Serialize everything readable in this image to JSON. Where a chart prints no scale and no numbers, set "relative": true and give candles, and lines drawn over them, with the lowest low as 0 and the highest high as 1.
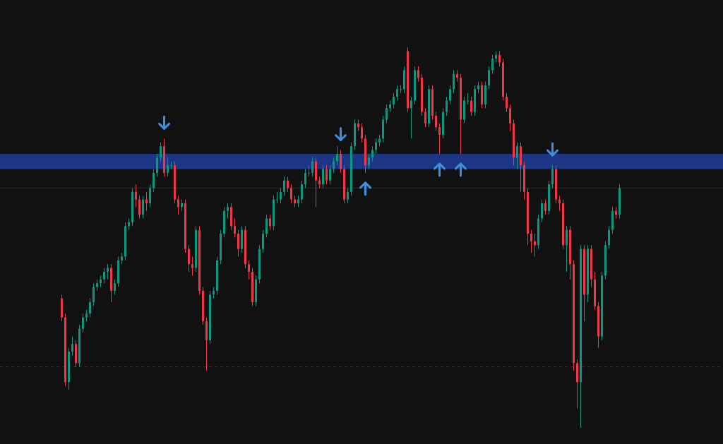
{
  "chart_data": {
    "type": "candlestick",
    "relative": true,
    "categories": [
      null,
      null,
      null,
      null,
      null,
      null,
      null,
      null,
      null,
      null,
      null,
      null,
      null,
      null,
      null,
      null,
      null,
      null,
      null,
      null,
      null,
      null,
      null,
      null,
      null,
      null,
      null,
      null,
      null,
      null,
      null,
      null,
      null,
      null,
      null,
      null,
      null,
      null,
      null,
      null,
      null,
      null,
      null,
      null,
      null,
      null,
      null,
      null,
      null,
      null,
      null,
      null,
      null,
      null,
      null,
      null,
      null,
      null,
      null,
      null,
      null,
      null,
      null,
      null,
      null,
      null,
      null,
      null,
      null,
      null,
      null,
      null,
      null,
      null,
      null,
      null,
      null,
      null,
      null,
      null,
      null,
      null,
      null,
      null,
      null,
      null,
      null,
      null,
      null,
      null,
      null,
      null,
      null,
      null,
      null,
      null,
      null,
      null,
      null,
      null,
      null,
      null,
      null,
      null,
      null,
      null,
      null,
      null,
      null,
      null,
      null,
      null,
      null,
      null,
      null,
      null,
      null,
      null,
      null,
      null,
      null,
      null,
      null,
      null,
      null,
      null,
      null,
      null,
      null,
      null,
      null,
      null,
      null,
      null,
      null,
      null,
      null,
      null,
      null,
      null,
      null,
      null,
      null,
      null,
      null,
      null,
      null,
      null,
      null,
      null,
      null,
      null,
      null,
      null,
      null,
      null,
      null,
      null,
      null
    ],
    "ohlc": [
      [
        0.34,
        0.35,
        0.28,
        0.29
      ],
      [
        0.29,
        0.3,
        0.11,
        0.12
      ],
      [
        0.12,
        0.21,
        0.1,
        0.2
      ],
      [
        0.2,
        0.24,
        0.19,
        0.22
      ],
      [
        0.22,
        0.23,
        0.16,
        0.17
      ],
      [
        0.17,
        0.27,
        0.16,
        0.26
      ],
      [
        0.26,
        0.3,
        0.25,
        0.29
      ],
      [
        0.29,
        0.31,
        0.28,
        0.3
      ],
      [
        0.3,
        0.34,
        0.29,
        0.33
      ],
      [
        0.33,
        0.38,
        0.32,
        0.37
      ],
      [
        0.37,
        0.39,
        0.36,
        0.38
      ],
      [
        0.38,
        0.4,
        0.37,
        0.39
      ],
      [
        0.39,
        0.42,
        0.38,
        0.41
      ],
      [
        0.41,
        0.43,
        0.39,
        0.42
      ],
      [
        0.42,
        0.43,
        0.33,
        0.36
      ],
      [
        0.36,
        0.39,
        0.35,
        0.38
      ],
      [
        0.38,
        0.45,
        0.37,
        0.44
      ],
      [
        0.44,
        0.46,
        0.43,
        0.45
      ],
      [
        0.45,
        0.54,
        0.44,
        0.53
      ],
      [
        0.53,
        0.55,
        0.52,
        0.54
      ],
      [
        0.54,
        0.63,
        0.53,
        0.62
      ],
      [
        0.62,
        0.64,
        0.58,
        0.6
      ],
      [
        0.6,
        0.61,
        0.55,
        0.56
      ],
      [
        0.56,
        0.61,
        0.55,
        0.6
      ],
      [
        0.6,
        0.62,
        0.57,
        0.59
      ],
      [
        0.59,
        0.64,
        0.58,
        0.63
      ],
      [
        0.63,
        0.68,
        0.62,
        0.67
      ],
      [
        0.67,
        0.72,
        0.66,
        0.71
      ],
      [
        0.71,
        0.75,
        0.7,
        0.74
      ],
      [
        0.74,
        0.76,
        0.66,
        0.67
      ],
      [
        0.67,
        0.71,
        0.66,
        0.69
      ],
      [
        0.69,
        0.7,
        0.68,
        0.69
      ],
      [
        0.69,
        0.7,
        0.59,
        0.6
      ],
      [
        0.6,
        0.61,
        0.56,
        0.58
      ],
      [
        0.58,
        0.6,
        0.57,
        0.59
      ],
      [
        0.59,
        0.6,
        0.46,
        0.47
      ],
      [
        0.47,
        0.48,
        0.41,
        0.43
      ],
      [
        0.43,
        0.45,
        0.4,
        0.42
      ],
      [
        0.42,
        0.53,
        0.41,
        0.52
      ],
      [
        0.52,
        0.53,
        0.35,
        0.36
      ],
      [
        0.36,
        0.37,
        0.27,
        0.28
      ],
      [
        0.28,
        0.29,
        0.15,
        0.23
      ],
      [
        0.23,
        0.36,
        0.22,
        0.35
      ],
      [
        0.35,
        0.37,
        0.34,
        0.36
      ],
      [
        0.36,
        0.45,
        0.35,
        0.44
      ],
      [
        0.44,
        0.52,
        0.43,
        0.51
      ],
      [
        0.51,
        0.58,
        0.5,
        0.57
      ],
      [
        0.57,
        0.59,
        0.55,
        0.58
      ],
      [
        0.58,
        0.59,
        0.52,
        0.53
      ],
      [
        0.53,
        0.55,
        0.5,
        0.51
      ],
      [
        0.51,
        0.52,
        0.45,
        0.47
      ],
      [
        0.47,
        0.53,
        0.46,
        0.52
      ],
      [
        0.52,
        0.53,
        0.42,
        0.43
      ],
      [
        0.43,
        0.44,
        0.39,
        0.41
      ],
      [
        0.41,
        0.42,
        0.32,
        0.33
      ],
      [
        0.33,
        0.4,
        0.32,
        0.39
      ],
      [
        0.39,
        0.48,
        0.38,
        0.47
      ],
      [
        0.47,
        0.52,
        0.46,
        0.51
      ],
      [
        0.51,
        0.56,
        0.5,
        0.55
      ],
      [
        0.55,
        0.56,
        0.52,
        0.53
      ],
      [
        0.53,
        0.61,
        0.52,
        0.6
      ],
      [
        0.6,
        0.62,
        0.59,
        0.6
      ],
      [
        0.6,
        0.63,
        0.59,
        0.62
      ],
      [
        0.62,
        0.66,
        0.61,
        0.65
      ],
      [
        0.65,
        0.66,
        0.62,
        0.63
      ],
      [
        0.63,
        0.64,
        0.59,
        0.6
      ],
      [
        0.6,
        0.61,
        0.58,
        0.59
      ],
      [
        0.59,
        0.61,
        0.58,
        0.6
      ],
      [
        0.6,
        0.65,
        0.59,
        0.64
      ],
      [
        0.64,
        0.68,
        0.63,
        0.67
      ],
      [
        0.67,
        0.69,
        0.66,
        0.67
      ],
      [
        0.67,
        0.71,
        0.66,
        0.7
      ],
      [
        0.7,
        0.71,
        0.58,
        0.65
      ],
      [
        0.65,
        0.66,
        0.63,
        0.64
      ],
      [
        0.64,
        0.69,
        0.63,
        0.68
      ],
      [
        0.68,
        0.69,
        0.64,
        0.65
      ],
      [
        0.65,
        0.69,
        0.64,
        0.68
      ],
      [
        0.68,
        0.71,
        0.67,
        0.7
      ],
      [
        0.7,
        0.74,
        0.69,
        0.72
      ],
      [
        0.72,
        0.73,
        0.67,
        0.68
      ],
      [
        0.68,
        0.69,
        0.59,
        0.6
      ],
      [
        0.6,
        0.63,
        0.59,
        0.62
      ],
      [
        0.62,
        0.75,
        0.61,
        0.74
      ],
      [
        0.74,
        0.81,
        0.73,
        0.8
      ],
      [
        0.8,
        0.81,
        0.78,
        0.79
      ],
      [
        0.79,
        0.8,
        0.75,
        0.76
      ],
      [
        0.76,
        0.77,
        0.67,
        0.69
      ],
      [
        0.69,
        0.72,
        0.68,
        0.71
      ],
      [
        0.71,
        0.74,
        0.7,
        0.73
      ],
      [
        0.73,
        0.76,
        0.72,
        0.75
      ],
      [
        0.75,
        0.77,
        0.74,
        0.76
      ],
      [
        0.76,
        0.82,
        0.75,
        0.81
      ],
      [
        0.81,
        0.85,
        0.8,
        0.84
      ],
      [
        0.84,
        0.86,
        0.83,
        0.85
      ],
      [
        0.85,
        0.88,
        0.84,
        0.87
      ],
      [
        0.87,
        0.9,
        0.86,
        0.89
      ],
      [
        0.89,
        0.9,
        0.88,
        0.89
      ],
      [
        0.89,
        0.95,
        0.88,
        0.94
      ],
      [
        0.99,
        1.0,
        0.83,
        0.84
      ],
      [
        0.84,
        0.87,
        0.76,
        0.86
      ],
      [
        0.86,
        0.95,
        0.85,
        0.94
      ],
      [
        0.94,
        0.95,
        0.91,
        0.92
      ],
      [
        0.92,
        0.93,
        0.82,
        0.83
      ],
      [
        0.83,
        0.84,
        0.79,
        0.8
      ],
      [
        0.8,
        0.9,
        0.79,
        0.89
      ],
      [
        0.89,
        0.9,
        0.81,
        0.82
      ],
      [
        0.82,
        0.83,
        0.78,
        0.79
      ],
      [
        0.79,
        0.8,
        0.72,
        0.77
      ],
      [
        0.77,
        0.84,
        0.76,
        0.83
      ],
      [
        0.83,
        0.87,
        0.82,
        0.86
      ],
      [
        0.86,
        0.9,
        0.85,
        0.89
      ],
      [
        0.89,
        0.94,
        0.88,
        0.93
      ],
      [
        0.93,
        0.94,
        0.91,
        0.92
      ],
      [
        0.92,
        0.93,
        0.72,
        0.81
      ],
      [
        0.81,
        0.87,
        0.8,
        0.86
      ],
      [
        0.86,
        0.88,
        0.85,
        0.86
      ],
      [
        0.86,
        0.87,
        0.82,
        0.83
      ],
      [
        0.83,
        0.9,
        0.82,
        0.89
      ],
      [
        0.89,
        0.91,
        0.88,
        0.9
      ],
      [
        0.9,
        0.91,
        0.84,
        0.85
      ],
      [
        0.85,
        0.91,
        0.84,
        0.9
      ],
      [
        0.9,
        0.95,
        0.89,
        0.94
      ],
      [
        0.94,
        0.98,
        0.93,
        0.97
      ],
      [
        0.97,
        0.99,
        0.96,
        0.98
      ],
      [
        0.98,
        0.99,
        0.95,
        0.96
      ],
      [
        0.96,
        0.97,
        0.86,
        0.87
      ],
      [
        0.87,
        0.88,
        0.83,
        0.84
      ],
      [
        0.84,
        0.85,
        0.78,
        0.8
      ],
      [
        0.8,
        0.81,
        0.69,
        0.71
      ],
      [
        0.71,
        0.75,
        0.68,
        0.74
      ],
      [
        0.74,
        0.75,
        0.62,
        0.69
      ],
      [
        0.69,
        0.7,
        0.6,
        0.62
      ],
      [
        0.62,
        0.63,
        0.48,
        0.51
      ],
      [
        0.51,
        0.52,
        0.46,
        0.49
      ],
      [
        0.49,
        0.51,
        0.45,
        0.48
      ],
      [
        0.48,
        0.56,
        0.47,
        0.55
      ],
      [
        0.55,
        0.6,
        0.54,
        0.59
      ],
      [
        0.59,
        0.6,
        0.56,
        0.57
      ],
      [
        0.57,
        0.65,
        0.56,
        0.64
      ],
      [
        0.64,
        0.69,
        0.63,
        0.68
      ],
      [
        0.68,
        0.69,
        0.59,
        0.6
      ],
      [
        0.6,
        0.61,
        0.57,
        0.59
      ],
      [
        0.59,
        0.6,
        0.47,
        0.48
      ],
      [
        0.48,
        0.53,
        0.41,
        0.52
      ],
      [
        0.52,
        0.53,
        0.39,
        0.43
      ],
      [
        0.43,
        0.44,
        0.15,
        0.17
      ],
      [
        0.17,
        0.18,
        0.05,
        0.12
      ],
      [
        0.12,
        0.48,
        0.0,
        0.47
      ],
      [
        0.47,
        0.48,
        0.28,
        0.35
      ],
      [
        0.35,
        0.48,
        0.33,
        0.47
      ],
      [
        0.47,
        0.48,
        0.37,
        0.39
      ],
      [
        0.39,
        0.41,
        0.31,
        0.32
      ],
      [
        0.32,
        0.33,
        0.21,
        0.24
      ],
      [
        0.24,
        0.41,
        0.23,
        0.4
      ],
      [
        0.4,
        0.49,
        0.39,
        0.48
      ],
      [
        0.48,
        0.53,
        0.47,
        0.52
      ],
      [
        0.52,
        0.58,
        0.51,
        0.57
      ],
      [
        0.57,
        0.58,
        0.55,
        0.56
      ],
      [
        0.56,
        0.64,
        0.55,
        0.63
      ]
    ],
    "bands": [
      {
        "axis": "y",
        "from": 0.68,
        "to": 0.72,
        "color": "#1c3585"
      }
    ],
    "ref_lines": [
      {
        "axis": "y",
        "value": 0.63,
        "color": "#262a28",
        "line_style": "solid"
      },
      {
        "axis": "y",
        "value": 0.16,
        "color": "#3a3a3a",
        "line_style": "dashed"
      }
    ]
  }
}
